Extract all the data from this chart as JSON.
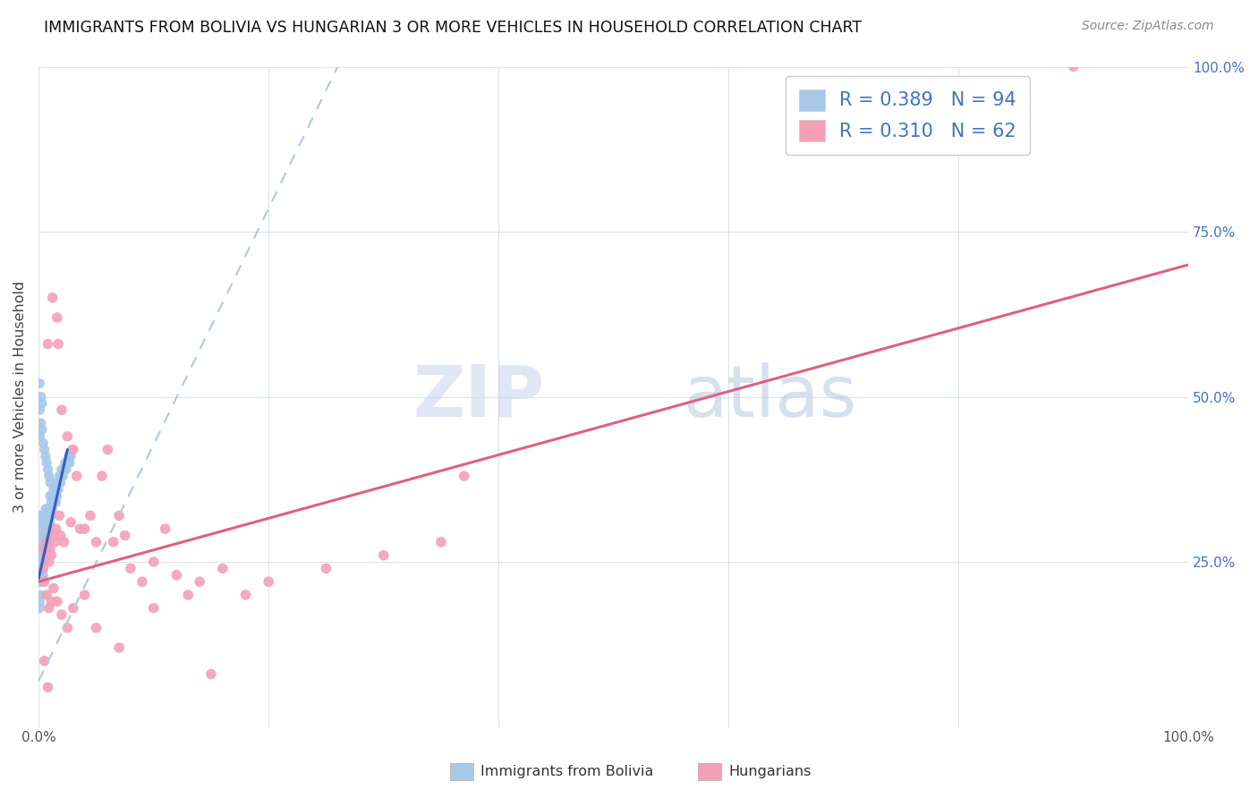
{
  "title": "IMMIGRANTS FROM BOLIVIA VS HUNGARIAN 3 OR MORE VEHICLES IN HOUSEHOLD CORRELATION CHART",
  "source": "Source: ZipAtlas.com",
  "ylabel": "3 or more Vehicles in Household",
  "r_bolivia": 0.389,
  "n_bolivia": 94,
  "r_hungarian": 0.31,
  "n_hungarian": 62,
  "color_bolivia": "#a8c8e8",
  "color_hungarian": "#f4a0b8",
  "color_bolivia_line": "#3060c0",
  "color_hungarian_line": "#e06080",
  "color_dashed_line": "#b0c8e0",
  "legend_text_color": "#4472c4",
  "right_axis_color": "#4472c4",
  "watermark_zip": "ZIP",
  "watermark_atlas": "atlas",
  "xlim": [
    0.0,
    1.0
  ],
  "ylim": [
    0.0,
    1.0
  ],
  "xtick_vals": [
    0.0,
    0.2,
    0.4,
    0.6,
    0.8,
    1.0
  ],
  "xtick_labels": [
    "0.0%",
    "",
    "",
    "",
    "",
    "100.0%"
  ],
  "ytick_vals": [
    0.0,
    0.25,
    0.5,
    0.75,
    1.0
  ],
  "right_ytick_vals": [
    0.25,
    0.5,
    0.75,
    1.0
  ],
  "right_ytick_labels": [
    "25.0%",
    "50.0%",
    "75.0%",
    "100.0%"
  ],
  "bolivia_x": [
    0.001,
    0.001,
    0.001,
    0.001,
    0.001,
    0.001,
    0.001,
    0.001,
    0.001,
    0.001,
    0.001,
    0.001,
    0.001,
    0.002,
    0.002,
    0.002,
    0.002,
    0.002,
    0.002,
    0.002,
    0.002,
    0.002,
    0.002,
    0.003,
    0.003,
    0.003,
    0.003,
    0.003,
    0.003,
    0.003,
    0.004,
    0.004,
    0.004,
    0.004,
    0.004,
    0.005,
    0.005,
    0.005,
    0.005,
    0.006,
    0.006,
    0.006,
    0.006,
    0.007,
    0.007,
    0.007,
    0.008,
    0.008,
    0.008,
    0.009,
    0.009,
    0.01,
    0.01,
    0.01,
    0.011,
    0.011,
    0.012,
    0.012,
    0.013,
    0.013,
    0.014,
    0.015,
    0.015,
    0.016,
    0.016,
    0.017,
    0.018,
    0.018,
    0.019,
    0.02,
    0.02,
    0.021,
    0.022,
    0.023,
    0.024,
    0.025,
    0.026,
    0.027,
    0.028,
    0.029,
    0.001,
    0.001,
    0.001,
    0.002,
    0.002,
    0.003,
    0.003,
    0.004,
    0.005,
    0.006,
    0.007,
    0.008,
    0.009,
    0.01
  ],
  "bolivia_y": [
    0.22,
    0.24,
    0.25,
    0.26,
    0.27,
    0.28,
    0.29,
    0.3,
    0.31,
    0.32,
    0.2,
    0.19,
    0.18,
    0.23,
    0.25,
    0.27,
    0.29,
    0.31,
    0.22,
    0.24,
    0.26,
    0.28,
    0.3,
    0.24,
    0.26,
    0.28,
    0.3,
    0.32,
    0.22,
    0.25,
    0.25,
    0.27,
    0.29,
    0.31,
    0.23,
    0.26,
    0.28,
    0.3,
    0.32,
    0.27,
    0.29,
    0.31,
    0.33,
    0.28,
    0.3,
    0.32,
    0.29,
    0.31,
    0.33,
    0.3,
    0.32,
    0.31,
    0.33,
    0.35,
    0.32,
    0.34,
    0.33,
    0.35,
    0.34,
    0.36,
    0.35,
    0.34,
    0.36,
    0.35,
    0.37,
    0.36,
    0.37,
    0.38,
    0.37,
    0.38,
    0.39,
    0.38,
    0.39,
    0.4,
    0.39,
    0.4,
    0.41,
    0.4,
    0.41,
    0.42,
    0.44,
    0.48,
    0.52,
    0.46,
    0.5,
    0.45,
    0.49,
    0.43,
    0.42,
    0.41,
    0.4,
    0.39,
    0.38,
    0.37
  ],
  "hungarian_x": [
    0.004,
    0.005,
    0.006,
    0.007,
    0.008,
    0.009,
    0.01,
    0.011,
    0.012,
    0.013,
    0.014,
    0.015,
    0.016,
    0.017,
    0.018,
    0.019,
    0.02,
    0.022,
    0.025,
    0.028,
    0.03,
    0.033,
    0.036,
    0.04,
    0.045,
    0.05,
    0.055,
    0.06,
    0.065,
    0.07,
    0.075,
    0.08,
    0.09,
    0.1,
    0.11,
    0.12,
    0.13,
    0.14,
    0.16,
    0.18,
    0.2,
    0.25,
    0.3,
    0.35,
    0.005,
    0.007,
    0.009,
    0.011,
    0.013,
    0.016,
    0.02,
    0.025,
    0.03,
    0.04,
    0.05,
    0.07,
    0.1,
    0.15,
    0.005,
    0.008,
    0.37,
    0.9
  ],
  "hungarian_y": [
    0.24,
    0.27,
    0.26,
    0.28,
    0.58,
    0.25,
    0.27,
    0.26,
    0.65,
    0.29,
    0.28,
    0.3,
    0.62,
    0.58,
    0.32,
    0.29,
    0.48,
    0.28,
    0.44,
    0.31,
    0.42,
    0.38,
    0.3,
    0.3,
    0.32,
    0.28,
    0.38,
    0.42,
    0.28,
    0.32,
    0.29,
    0.24,
    0.22,
    0.25,
    0.3,
    0.23,
    0.2,
    0.22,
    0.24,
    0.2,
    0.22,
    0.24,
    0.26,
    0.28,
    0.22,
    0.2,
    0.18,
    0.19,
    0.21,
    0.19,
    0.17,
    0.15,
    0.18,
    0.2,
    0.15,
    0.12,
    0.18,
    0.08,
    0.1,
    0.06,
    0.38,
    1.0
  ],
  "bolivia_line_x0": 0.0,
  "bolivia_line_x1": 0.025,
  "bolivia_line_y0": 0.225,
  "bolivia_line_y1": 0.42,
  "hungarian_line_x0": 0.0,
  "hungarian_line_x1": 1.0,
  "hungarian_line_y0": 0.22,
  "hungarian_line_y1": 0.7,
  "dashed_line_x0": 0.0,
  "dashed_line_x1": 0.26,
  "dashed_line_y0": 0.07,
  "dashed_line_y1": 1.0
}
